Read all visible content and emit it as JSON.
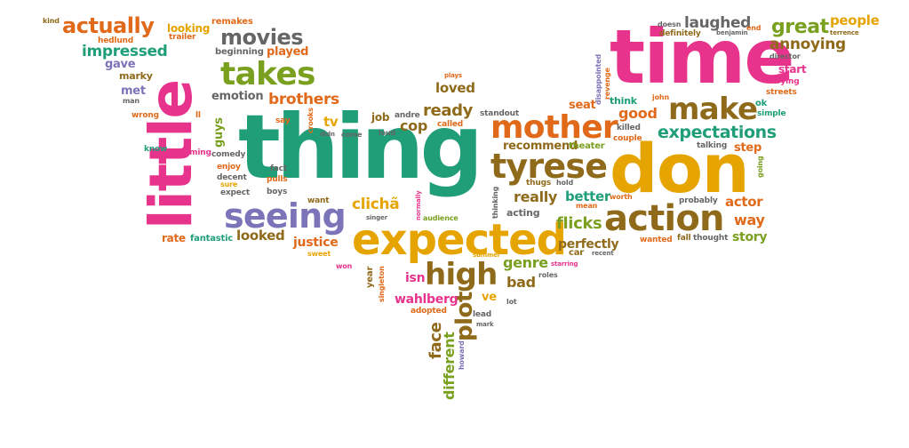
{
  "colors": {
    "green": "#1f9e78",
    "pink": "#e8338c",
    "yellow": "#e6a400",
    "brown": "#8f6a1a",
    "purple": "#7b74b8",
    "olive": "#7aa020",
    "orange": "#e06a1a",
    "gray": "#666666"
  },
  "words": {
    "thing": "thing",
    "time": "time",
    "don": "don",
    "little": "little",
    "expected": "expected",
    "action": "action",
    "tyrese": "tyrese",
    "mother": "mother",
    "seeing": "seeing",
    "takes": "takes",
    "make": "make",
    "high": "high",
    "movies": "movies",
    "actually": "actually",
    "great": "great",
    "expectations": "expectations",
    "annoying": "annoying",
    "laughed": "laughed",
    "people": "people",
    "impressed": "impressed",
    "plot": "plot",
    "brothers": "brothers",
    "loved": "loved",
    "ready": "ready",
    "really": "really",
    "better": "better",
    "flicks": "flicks",
    "recommend": "recommend",
    "perfectly": "perfectly",
    "genre": "genre",
    "cop": "cop",
    "good": "good",
    "way": "way",
    "actor": "actor",
    "story": "story",
    "looked": "looked",
    "justice": "justice",
    "clicha": "clichã",
    "wahlberg": "wahlberg",
    "bad": "bad",
    "face": "face",
    "different": "different",
    "isn": "isn",
    "ve": "ve",
    "rate": "rate",
    "fantastic": "fantastic",
    "emotion": "emotion",
    "played": "played",
    "beginning": "beginning",
    "looking": "looking",
    "trailer": "trailer",
    "remakes": "remakes",
    "hedlund": "hedlund",
    "gave": "gave",
    "marky": "marky",
    "met": "met",
    "man": "man",
    "wrong": "wrong",
    "ll": "ll",
    "guys": "guys",
    "coming": "coming",
    "know": "know",
    "comedy": "comedy",
    "enjoy": "enjoy",
    "sure": "sure",
    "decent": "decent",
    "expect": "expect",
    "fact": "fact",
    "pulls": "pulls",
    "boys": "boys",
    "say": "say",
    "tv": "tv",
    "crooks": "crooks",
    "didn": "didn",
    "come": "come",
    "loud": "loud",
    "job": "job",
    "andre": "andre",
    "called": "called",
    "standout": "standout",
    "plays": "plays",
    "seat": "seat",
    "disappointed": "disappointed",
    "revenge": "revenge",
    "think": "think",
    "killed": "killed",
    "couple": "couple",
    "john": "john",
    "theater": "theater",
    "talking": "talking",
    "step": "step",
    "ok": "ok",
    "simple": "simple",
    "streets": "streets",
    "trying": "trying",
    "start": "start",
    "director": "director",
    "going": "going",
    "doesn": "doesn",
    "definitely": "definitely",
    "benjamin": "benjamin",
    "end": "end",
    "terrence": "terrence",
    "kind": "kind",
    "want": "want",
    "singer": "singer",
    "normally": "normally",
    "audience": "audience",
    "thinking": "thinking",
    "acting": "acting",
    "thugs": "thugs",
    "hold": "hold",
    "mean": "mean",
    "worth": "worth",
    "probably": "probably",
    "wanted": "wanted",
    "fall": "fall",
    "thought": "thought",
    "car": "car",
    "recent": "recent",
    "starring": "starring",
    "summer": "summer",
    "roles": "roles",
    "sweet": "sweet",
    "won": "won",
    "year": "year",
    "singleton": "singleton",
    "adopted": "adopted",
    "lead": "lead",
    "mark": "mark",
    "lot": "lot",
    "howard": "howard"
  }
}
